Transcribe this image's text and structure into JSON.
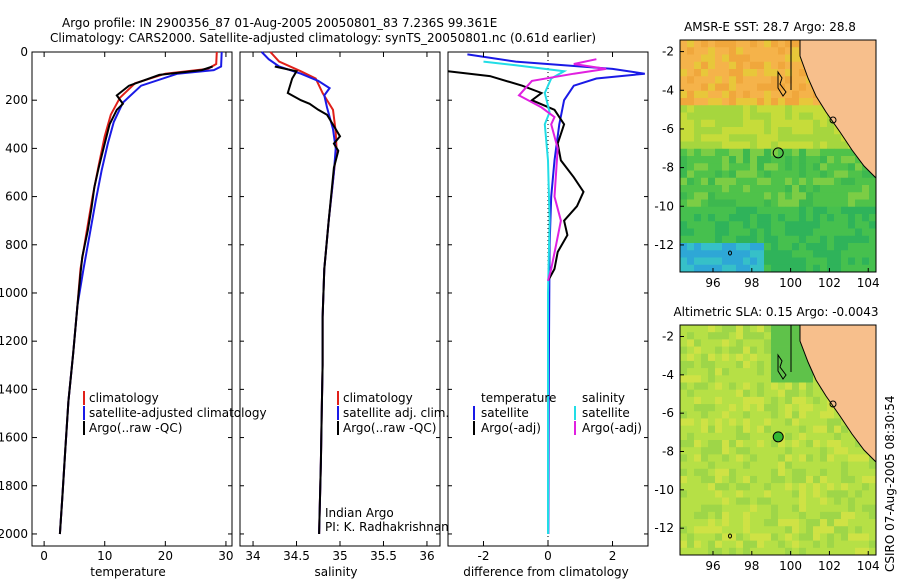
{
  "title": {
    "line1": "Argo profile: IN 2900356_87 01-Aug-2005 20050801_83 7.236S 99.361E",
    "line2": "Climatology: CARS2000. Satellite-adjusted climatology: synTS_20050801.nc (0.61d earlier)"
  },
  "footer_stamp": "CSIRO 07-Aug-2005 08:30:54",
  "colors": {
    "climatology": "#e0201a",
    "satellite": "#1a1ae6",
    "argo": "#000000",
    "sal_satellite": "#22dde6",
    "sal_argo": "#e020e0",
    "land": "#f7bf8c"
  },
  "chart_data": [
    {
      "type": "line",
      "id": "temperature",
      "xlabel": "temperature",
      "xlim": [
        -2,
        31
      ],
      "ylim": [
        2050,
        0
      ],
      "xticks": [
        "0",
        "10",
        "20",
        "30"
      ],
      "xtick_values": [
        0,
        10,
        20,
        30
      ],
      "yticks": [
        "0",
        "200",
        "400",
        "600",
        "800",
        "1000",
        "1200",
        "1400",
        "1600",
        "1800",
        "2000"
      ],
      "ytick_values": [
        0,
        200,
        400,
        600,
        800,
        1000,
        1200,
        1400,
        1600,
        1800,
        2000
      ],
      "legend": [
        "climatology",
        "satellite-adjusted climatology",
        "Argo(..raw -QC)"
      ],
      "series": [
        {
          "name": "climatology",
          "color_key": "climatology",
          "points": [
            [
              28.5,
              0
            ],
            [
              28.4,
              50
            ],
            [
              27,
              70
            ],
            [
              20,
              90
            ],
            [
              15,
              130
            ],
            [
              12.5,
              190
            ],
            [
              11,
              260
            ],
            [
              10,
              350
            ],
            [
              9,
              470
            ],
            [
              8,
              600
            ],
            [
              7,
              750
            ],
            [
              6,
              900
            ],
            [
              5.5,
              1050
            ],
            [
              4.8,
              1250
            ],
            [
              4,
              1450
            ],
            [
              3.5,
              1650
            ],
            [
              3,
              1850
            ],
            [
              2.6,
              2000
            ]
          ]
        },
        {
          "name": "satellite-adjusted climatology",
          "color_key": "satellite",
          "points": [
            [
              29.3,
              0
            ],
            [
              29.2,
              60
            ],
            [
              28,
              75
            ],
            [
              22,
              90
            ],
            [
              16,
              140
            ],
            [
              13,
              210
            ],
            [
              11.5,
              290
            ],
            [
              10.5,
              380
            ],
            [
              9.5,
              490
            ],
            [
              8.5,
              620
            ],
            [
              7.5,
              760
            ],
            [
              6.5,
              900
            ],
            [
              5.5,
              1050
            ],
            [
              4.8,
              1250
            ],
            [
              4,
              1450
            ],
            [
              3.5,
              1650
            ],
            [
              3,
              1850
            ],
            [
              2.6,
              2000
            ]
          ]
        },
        {
          "name": "Argo(..raw -QC)",
          "color_key": "argo",
          "points": [
            [
              27.8,
              60
            ],
            [
              26,
              75
            ],
            [
              19,
              95
            ],
            [
              14,
              140
            ],
            [
              12,
              180
            ],
            [
              13,
              215
            ],
            [
              12,
              240
            ],
            [
              10.8,
              300
            ],
            [
              10,
              380
            ],
            [
              9,
              480
            ],
            [
              8.3,
              560
            ],
            [
              7.8,
              650
            ],
            [
              7.2,
              740
            ],
            [
              6.3,
              850
            ],
            [
              6,
              920
            ],
            [
              5.5,
              1050
            ],
            [
              4.8,
              1250
            ],
            [
              4,
              1450
            ],
            [
              3.5,
              1650
            ],
            [
              3,
              1850
            ],
            [
              2.6,
              2000
            ]
          ]
        }
      ]
    },
    {
      "type": "line",
      "id": "salinity",
      "xlabel": "salinity",
      "xlim": [
        33.85,
        36.15
      ],
      "ylim": [
        2050,
        0
      ],
      "xticks": [
        "34",
        "34.5",
        "35",
        "35.5",
        "36"
      ],
      "xtick_values": [
        34,
        34.5,
        35,
        35.5,
        36
      ],
      "legend": [
        "climatology",
        "satellite adj. clim.",
        "Argo(..raw -QC)"
      ],
      "annotation": [
        "Indian Argo",
        "PI: K. Radhakrishnan"
      ],
      "series": [
        {
          "name": "climatology",
          "color_key": "climatology",
          "points": [
            [
              34.2,
              0
            ],
            [
              34.3,
              40
            ],
            [
              34.55,
              80
            ],
            [
              34.72,
              110
            ],
            [
              34.8,
              170
            ],
            [
              34.92,
              240
            ],
            [
              34.95,
              330
            ],
            [
              34.96,
              400
            ],
            [
              34.93,
              500
            ],
            [
              34.87,
              700
            ],
            [
              34.82,
              900
            ],
            [
              34.8,
              1100
            ],
            [
              34.8,
              1300
            ],
            [
              34.79,
              1500
            ],
            [
              34.78,
              1700
            ],
            [
              34.76,
              2000
            ]
          ]
        },
        {
          "name": "satellite adj. clim.",
          "color_key": "satellite",
          "points": [
            [
              34.1,
              0
            ],
            [
              34.18,
              30
            ],
            [
              34.3,
              60
            ],
            [
              34.55,
              90
            ],
            [
              34.75,
              120
            ],
            [
              34.88,
              150
            ],
            [
              34.82,
              180
            ],
            [
              34.85,
              230
            ],
            [
              34.92,
              320
            ],
            [
              34.95,
              400
            ],
            [
              34.93,
              500
            ],
            [
              34.87,
              700
            ],
            [
              34.82,
              900
            ],
            [
              34.8,
              1100
            ],
            [
              34.8,
              1300
            ],
            [
              34.79,
              1500
            ],
            [
              34.78,
              1700
            ],
            [
              34.76,
              2000
            ]
          ]
        },
        {
          "name": "Argo(..raw -QC)",
          "color_key": "argo",
          "points": [
            [
              34.25,
              60
            ],
            [
              34.5,
              80
            ],
            [
              34.45,
              110
            ],
            [
              34.4,
              170
            ],
            [
              34.55,
              200
            ],
            [
              34.65,
              215
            ],
            [
              34.75,
              240
            ],
            [
              34.85,
              260
            ],
            [
              34.95,
              320
            ],
            [
              35.0,
              350
            ],
            [
              34.93,
              380
            ],
            [
              34.98,
              410
            ],
            [
              34.93,
              480
            ],
            [
              34.87,
              700
            ],
            [
              34.82,
              900
            ],
            [
              34.8,
              1100
            ],
            [
              34.8,
              1300
            ],
            [
              34.79,
              1500
            ],
            [
              34.78,
              1700
            ],
            [
              34.76,
              2000
            ]
          ]
        }
      ]
    },
    {
      "type": "line",
      "id": "difference",
      "xlabel": "difference from climatology",
      "xlim": [
        -3.1,
        3.1
      ],
      "ylim": [
        2050,
        0
      ],
      "xticks": [
        "-2",
        "0",
        "2"
      ],
      "xtick_values": [
        -2,
        0,
        2
      ],
      "legend_temperature_title": "temperature",
      "legend_salinity_title": "salinity",
      "legend": [
        "satellite",
        "Argo(-adj)",
        "satellite",
        "Argo(-adj)"
      ],
      "series": [
        {
          "name": "temperature satellite",
          "color_key": "satellite",
          "points": [
            [
              -2.5,
              10
            ],
            [
              -1,
              40
            ],
            [
              2,
              70
            ],
            [
              3,
              90
            ],
            [
              1.5,
              110
            ],
            [
              0.8,
              140
            ],
            [
              0.5,
              200
            ],
            [
              0.35,
              300
            ],
            [
              0.2,
              450
            ],
            [
              0.1,
              600
            ],
            [
              0.05,
              800
            ],
            [
              0.03,
              1200
            ],
            [
              0.02,
              1600
            ],
            [
              0.01,
              2000
            ]
          ]
        },
        {
          "name": "temperature Argo(-adj)",
          "color_key": "argo",
          "points": [
            [
              -3.1,
              80
            ],
            [
              -1.8,
              100
            ],
            [
              -0.8,
              140
            ],
            [
              -0.2,
              170
            ],
            [
              -0.5,
              200
            ],
            [
              0.2,
              240
            ],
            [
              0.5,
              300
            ],
            [
              0.3,
              380
            ],
            [
              0.4,
              450
            ],
            [
              0.8,
              520
            ],
            [
              1.1,
              580
            ],
            [
              0.9,
              640
            ],
            [
              0.5,
              700
            ],
            [
              0.6,
              760
            ],
            [
              0.3,
              830
            ],
            [
              0.2,
              900
            ],
            [
              0,
              950
            ]
          ]
        },
        {
          "name": "salinity satellite",
          "color_key": "sal_satellite",
          "points": [
            [
              -2,
              40
            ],
            [
              -1,
              55
            ],
            [
              0.5,
              80
            ],
            [
              0.1,
              110
            ],
            [
              -0.1,
              170
            ],
            [
              0.05,
              250
            ],
            [
              -0.1,
              300
            ],
            [
              0,
              450
            ],
            [
              0.05,
              700
            ],
            [
              0,
              1000
            ],
            [
              0,
              1500
            ],
            [
              0,
              2000
            ]
          ]
        },
        {
          "name": "salinity Argo(-adj)",
          "color_key": "sal_argo",
          "points": [
            [
              1.5,
              30
            ],
            [
              0.8,
              50
            ],
            [
              1.8,
              70
            ],
            [
              0.8,
              90
            ],
            [
              -0.5,
              120
            ],
            [
              -0.9,
              180
            ],
            [
              -0.2,
              230
            ],
            [
              0.2,
              270
            ],
            [
              0.1,
              300
            ],
            [
              0.3,
              400
            ],
            [
              0.2,
              600
            ],
            [
              0.4,
              700
            ],
            [
              0.25,
              800
            ],
            [
              0.1,
              900
            ],
            [
              0,
              950
            ]
          ]
        }
      ]
    },
    {
      "type": "heatmap",
      "id": "sst_map",
      "title": "AMSR-E SST: 28.7  Argo: 28.8",
      "xlim": [
        94.3,
        104.4
      ],
      "ylim": [
        -13.4,
        -1.4
      ],
      "xticks": [
        "96",
        "98",
        "100",
        "102",
        "104"
      ],
      "xtick_values": [
        96,
        98,
        100,
        102,
        104
      ],
      "yticks": [
        "-2",
        "-4",
        "-6",
        "-8",
        "-10",
        "-12"
      ],
      "ytick_values": [
        -2,
        -4,
        -6,
        -8,
        -10,
        -12
      ],
      "argo_position": [
        99.361,
        -7.236
      ]
    },
    {
      "type": "heatmap",
      "id": "sla_map",
      "title": "Altimetric SLA: 0.15  Argo: -0.0043",
      "xlim": [
        94.3,
        104.4
      ],
      "ylim": [
        -13.4,
        -1.4
      ],
      "xticks": [
        "96",
        "98",
        "100",
        "102",
        "104"
      ],
      "xtick_values": [
        96,
        98,
        100,
        102,
        104
      ],
      "yticks": [
        "-2",
        "-4",
        "-6",
        "-8",
        "-10",
        "-12"
      ],
      "ytick_values": [
        -2,
        -4,
        -6,
        -8,
        -10,
        -12
      ],
      "argo_position": [
        99.361,
        -7.236
      ]
    }
  ]
}
